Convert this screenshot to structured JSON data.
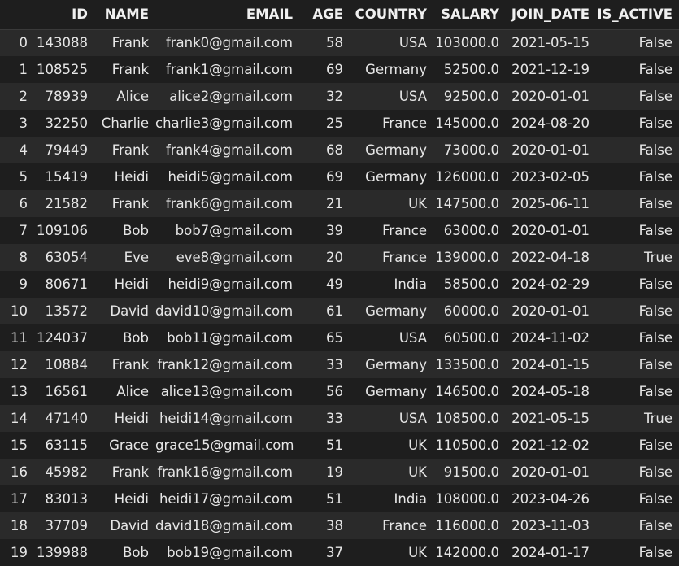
{
  "columns": [
    "",
    "ID",
    "NAME",
    "EMAIL",
    "AGE",
    "COUNTRY",
    "SALARY",
    "JOIN_DATE",
    "IS_ACTIVE"
  ],
  "rows": [
    [
      "0",
      "143088",
      "Frank",
      "frank0@gmail.com",
      "58",
      "USA",
      "103000.0",
      "2021-05-15",
      "False"
    ],
    [
      "1",
      "108525",
      "Frank",
      "frank1@gmail.com",
      "69",
      "Germany",
      "52500.0",
      "2021-12-19",
      "False"
    ],
    [
      "2",
      "78939",
      "Alice",
      "alice2@gmail.com",
      "32",
      "USA",
      "92500.0",
      "2020-01-01",
      "False"
    ],
    [
      "3",
      "32250",
      "Charlie",
      "charlie3@gmail.com",
      "25",
      "France",
      "145000.0",
      "2024-08-20",
      "False"
    ],
    [
      "4",
      "79449",
      "Frank",
      "frank4@gmail.com",
      "68",
      "Germany",
      "73000.0",
      "2020-01-01",
      "False"
    ],
    [
      "5",
      "15419",
      "Heidi",
      "heidi5@gmail.com",
      "69",
      "Germany",
      "126000.0",
      "2023-02-05",
      "False"
    ],
    [
      "6",
      "21582",
      "Frank",
      "frank6@gmail.com",
      "21",
      "UK",
      "147500.0",
      "2025-06-11",
      "False"
    ],
    [
      "7",
      "109106",
      "Bob",
      "bob7@gmail.com",
      "39",
      "France",
      "63000.0",
      "2020-01-01",
      "False"
    ],
    [
      "8",
      "63054",
      "Eve",
      "eve8@gmail.com",
      "20",
      "France",
      "139000.0",
      "2022-04-18",
      "True"
    ],
    [
      "9",
      "80671",
      "Heidi",
      "heidi9@gmail.com",
      "49",
      "India",
      "58500.0",
      "2024-02-29",
      "False"
    ],
    [
      "10",
      "13572",
      "David",
      "david10@gmail.com",
      "61",
      "Germany",
      "60000.0",
      "2020-01-01",
      "False"
    ],
    [
      "11",
      "124037",
      "Bob",
      "bob11@gmail.com",
      "65",
      "USA",
      "60500.0",
      "2024-11-02",
      "False"
    ],
    [
      "12",
      "10884",
      "Frank",
      "frank12@gmail.com",
      "33",
      "Germany",
      "133500.0",
      "2024-01-15",
      "False"
    ],
    [
      "13",
      "16561",
      "Alice",
      "alice13@gmail.com",
      "56",
      "Germany",
      "146500.0",
      "2024-05-18",
      "False"
    ],
    [
      "14",
      "47140",
      "Heidi",
      "heidi14@gmail.com",
      "33",
      "USA",
      "108500.0",
      "2021-05-15",
      "True"
    ],
    [
      "15",
      "63115",
      "Grace",
      "grace15@gmail.com",
      "51",
      "UK",
      "110500.0",
      "2021-12-02",
      "False"
    ],
    [
      "16",
      "45982",
      "Frank",
      "frank16@gmail.com",
      "19",
      "UK",
      "91500.0",
      "2020-01-01",
      "False"
    ],
    [
      "17",
      "83013",
      "Heidi",
      "heidi17@gmail.com",
      "51",
      "India",
      "108000.0",
      "2023-04-26",
      "False"
    ],
    [
      "18",
      "37709",
      "David",
      "david18@gmail.com",
      "38",
      "France",
      "116000.0",
      "2023-11-03",
      "False"
    ],
    [
      "19",
      "139988",
      "Bob",
      "bob19@gmail.com",
      "37",
      "UK",
      "142000.0",
      "2024-01-17",
      "False"
    ]
  ]
}
